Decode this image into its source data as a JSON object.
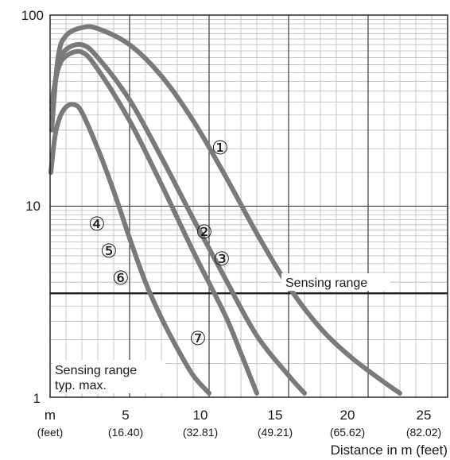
{
  "chart_data": {
    "type": "line",
    "x_scale": "linear",
    "y_scale": "log",
    "xlim": [
      0,
      25
    ],
    "ylim": [
      1,
      100
    ],
    "grid": true,
    "x_unit_label": "m",
    "x_unit_sub_label": "(feet)",
    "x_ticks": [
      {
        "value": 5,
        "label": "5",
        "sub": "(16.40)"
      },
      {
        "value": 10,
        "label": "10",
        "sub": "(32.81)"
      },
      {
        "value": 15,
        "label": "15",
        "sub": "(49.21)"
      },
      {
        "value": 20,
        "label": "20",
        "sub": "(65.62)"
      },
      {
        "value": 25,
        "label": "25",
        "sub": "(82.02)"
      }
    ],
    "y_ticks": [
      {
        "value": 1,
        "label": "1"
      },
      {
        "value": 10,
        "label": "10"
      },
      {
        "value": 100,
        "label": "100"
      }
    ],
    "xlabel": "Distance in m (feet)",
    "ylabel": "",
    "series": [
      {
        "marker": "①",
        "points": [
          [
            0.1,
            25
          ],
          [
            0.5,
            60
          ],
          [
            1,
            78
          ],
          [
            2,
            86
          ],
          [
            3,
            85
          ],
          [
            5,
            70
          ],
          [
            7,
            48
          ],
          [
            9,
            28
          ],
          [
            11,
            14.5
          ],
          [
            13,
            7.2
          ],
          [
            15,
            3.8
          ],
          [
            17,
            2.3
          ],
          [
            19,
            1.6
          ],
          [
            21,
            1.2
          ],
          [
            22,
            1.05
          ]
        ]
      },
      {
        "marker": "②",
        "points": [
          [
            0.1,
            32
          ],
          [
            0.5,
            55
          ],
          [
            1,
            66
          ],
          [
            2,
            70
          ],
          [
            3,
            60
          ],
          [
            5,
            36
          ],
          [
            7,
            18
          ],
          [
            9,
            8.6
          ],
          [
            11,
            4.2
          ],
          [
            13,
            2.1
          ],
          [
            15,
            1.3
          ],
          [
            16,
            1.05
          ]
        ]
      },
      {
        "marker": "③",
        "points": [
          [
            0.1,
            35
          ],
          [
            0.5,
            52
          ],
          [
            1,
            61
          ],
          [
            2,
            64
          ],
          [
            3,
            52
          ],
          [
            5,
            28
          ],
          [
            7,
            13
          ],
          [
            9,
            5.8
          ],
          [
            11,
            2.7
          ],
          [
            12,
            1.7
          ],
          [
            13,
            1.05
          ]
        ]
      },
      {
        "marker": "④",
        "points": [
          [
            0.05,
            15
          ],
          [
            0.3,
            23
          ],
          [
            0.6,
            29
          ],
          [
            1,
            33
          ],
          [
            1.5,
            34
          ],
          [
            2,
            31
          ],
          [
            3,
            20
          ],
          [
            4,
            12
          ],
          [
            5,
            6.8
          ],
          [
            6,
            4
          ],
          [
            7,
            2.6
          ],
          [
            8,
            1.8
          ],
          [
            9,
            1.3
          ],
          [
            10,
            1.05
          ]
        ]
      },
      {
        "marker": "⑤",
        "points": []
      },
      {
        "marker": "⑥",
        "points": []
      },
      {
        "marker": "⑦",
        "points": []
      }
    ],
    "reference_lines": [
      {
        "y": 3.5,
        "label": "Sensing range"
      }
    ],
    "annotations": [
      {
        "text": "Sensing range"
      },
      {
        "text": "typ. max."
      }
    ]
  }
}
